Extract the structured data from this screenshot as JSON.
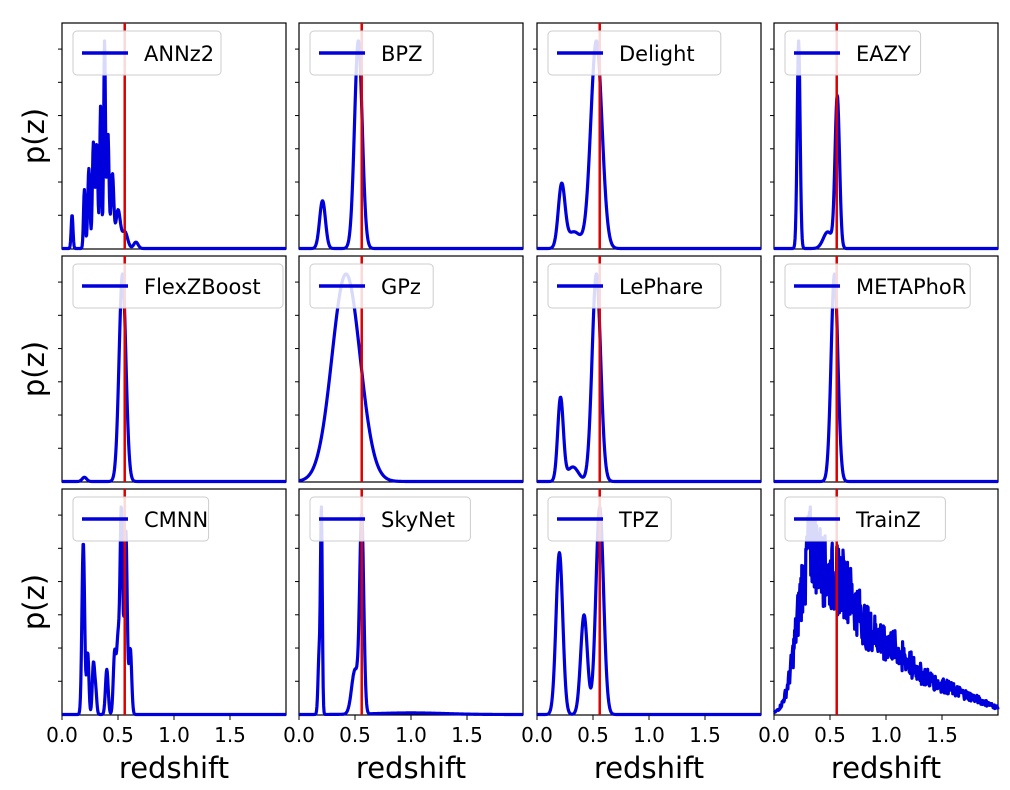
{
  "chart_data": {
    "type": "line",
    "layout": "3 rows x 4 columns, shared axes",
    "xlim": [
      0.0,
      2.0
    ],
    "xticks": [
      0.0,
      0.5,
      1.0,
      1.5
    ],
    "xtick_labels": [
      "0.0",
      "0.5",
      "1.0",
      "1.5"
    ],
    "xlabel": "redshift",
    "ylabel": "p(z)",
    "y_tick_labels_shown": false,
    "true_redshift": 0.56,
    "colors": {
      "pdf_line": "#0000dd",
      "true_z_line": "#dd0000"
    },
    "legend_placement": "top-left",
    "panels": [
      {
        "name": "ANNz2",
        "components": [
          {
            "mu": 0.09,
            "sigma": 0.008,
            "a": 0.16
          },
          {
            "mu": 0.2,
            "sigma": 0.008,
            "a": 0.28
          },
          {
            "mu": 0.24,
            "sigma": 0.01,
            "a": 0.38
          },
          {
            "mu": 0.28,
            "sigma": 0.009,
            "a": 0.5
          },
          {
            "mu": 0.31,
            "sigma": 0.01,
            "a": 0.5
          },
          {
            "mu": 0.345,
            "sigma": 0.008,
            "a": 0.68
          },
          {
            "mu": 0.38,
            "sigma": 0.008,
            "a": 0.98
          },
          {
            "mu": 0.41,
            "sigma": 0.01,
            "a": 0.55
          },
          {
            "mu": 0.45,
            "sigma": 0.012,
            "a": 0.35
          },
          {
            "mu": 0.5,
            "sigma": 0.02,
            "a": 0.18
          },
          {
            "mu": 0.56,
            "sigma": 0.025,
            "a": 0.08
          },
          {
            "mu": 0.66,
            "sigma": 0.02,
            "a": 0.03
          }
        ],
        "noise": 0.0
      },
      {
        "name": "BPZ",
        "components": [
          {
            "mu": 0.21,
            "sigma": 0.026,
            "a": 0.23
          },
          {
            "mu": 0.53,
            "sigma": 0.034,
            "a": 1.0
          }
        ],
        "noise": 0.0
      },
      {
        "name": "Delight",
        "components": [
          {
            "mu": 0.22,
            "sigma": 0.03,
            "a": 0.3
          },
          {
            "mu": 0.33,
            "sigma": 0.06,
            "a": 0.08
          },
          {
            "mu": 0.53,
            "sigma": 0.05,
            "a": 1.0
          }
        ],
        "noise": 0.0
      },
      {
        "name": "EAZY",
        "components": [
          {
            "mu": 0.22,
            "sigma": 0.013,
            "a": 1.0
          },
          {
            "mu": 0.48,
            "sigma": 0.04,
            "a": 0.08
          },
          {
            "mu": 0.565,
            "sigma": 0.02,
            "a": 0.73
          }
        ],
        "noise": 0.0
      },
      {
        "name": "FlexZBoost",
        "components": [
          {
            "mu": 0.2,
            "sigma": 0.02,
            "a": 0.02
          },
          {
            "mu": 0.54,
            "sigma": 0.03,
            "a": 0.98
          }
        ],
        "noise": 0.0
      },
      {
        "name": "GPz",
        "components": [
          {
            "mu": 0.42,
            "sigma": 0.125,
            "a": 1.0
          }
        ],
        "noise": 0.0
      },
      {
        "name": "LePhare",
        "components": [
          {
            "mu": 0.21,
            "sigma": 0.025,
            "a": 0.4
          },
          {
            "mu": 0.32,
            "sigma": 0.05,
            "a": 0.07
          },
          {
            "mu": 0.53,
            "sigma": 0.038,
            "a": 1.0
          }
        ],
        "noise": 0.0
      },
      {
        "name": "METAPhoR",
        "components": [
          {
            "mu": 0.54,
            "sigma": 0.03,
            "a": 1.0
          }
        ],
        "noise": 0.0
      },
      {
        "name": "CMNN",
        "components": [
          {
            "mu": 0.19,
            "sigma": 0.012,
            "a": 0.84
          },
          {
            "mu": 0.23,
            "sigma": 0.01,
            "a": 0.3
          },
          {
            "mu": 0.28,
            "sigma": 0.01,
            "a": 0.24
          },
          {
            "mu": 0.3,
            "sigma": 0.01,
            "a": 0.12
          },
          {
            "mu": 0.4,
            "sigma": 0.012,
            "a": 0.22
          },
          {
            "mu": 0.47,
            "sigma": 0.012,
            "a": 0.3
          },
          {
            "mu": 0.5,
            "sigma": 0.012,
            "a": 0.35
          },
          {
            "mu": 0.53,
            "sigma": 0.012,
            "a": 1.0
          },
          {
            "mu": 0.57,
            "sigma": 0.012,
            "a": 0.9
          },
          {
            "mu": 0.61,
            "sigma": 0.012,
            "a": 0.32
          }
        ],
        "noise": 0.0
      },
      {
        "name": "SkyNet",
        "components": [
          {
            "mu": 0.2,
            "sigma": 0.008,
            "a": 1.0
          },
          {
            "mu": 0.18,
            "sigma": 0.01,
            "a": 0.3
          },
          {
            "mu": 0.5,
            "sigma": 0.03,
            "a": 0.22
          },
          {
            "mu": 0.56,
            "sigma": 0.018,
            "a": 0.97
          },
          {
            "mu": 1.0,
            "sigma": 0.3,
            "a": 0.008
          }
        ],
        "noise": 0.004
      },
      {
        "name": "TPZ",
        "components": [
          {
            "mu": 0.2,
            "sigma": 0.03,
            "a": 0.78
          },
          {
            "mu": 0.42,
            "sigma": 0.03,
            "a": 0.48
          },
          {
            "mu": 0.56,
            "sigma": 0.034,
            "a": 1.0
          }
        ],
        "noise": 0.0
      },
      {
        "name": "TrainZ",
        "components": [
          {
            "mu": 0.3,
            "sigma": 0.1,
            "a": 0.55
          },
          {
            "mu": 0.55,
            "sigma": 0.17,
            "a": 0.55
          },
          {
            "mu": 0.95,
            "sigma": 0.22,
            "a": 0.3
          },
          {
            "mu": 1.4,
            "sigma": 0.25,
            "a": 0.12
          },
          {
            "mu": 1.8,
            "sigma": 0.2,
            "a": 0.04
          }
        ],
        "noise": 0.12
      }
    ]
  }
}
